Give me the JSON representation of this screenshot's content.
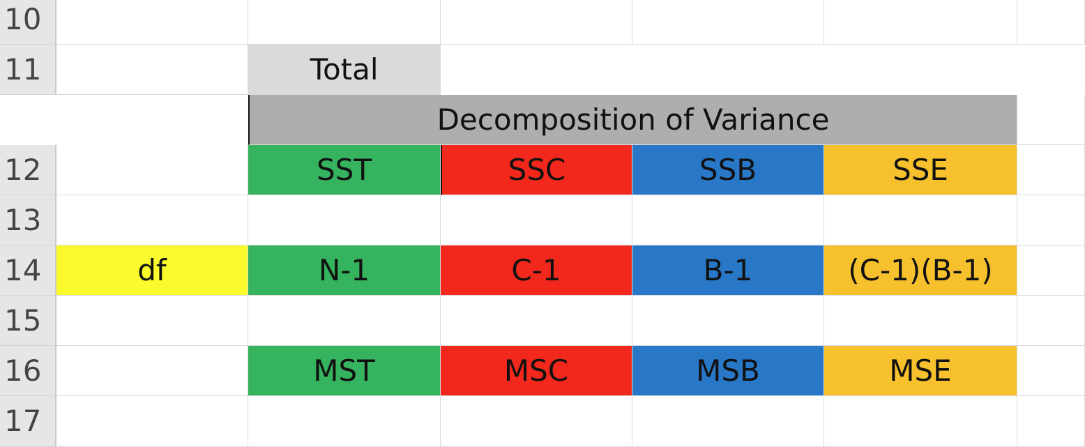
{
  "rows": [
    {
      "number": "10",
      "cells": []
    },
    {
      "number": "11",
      "cells": []
    },
    {
      "number": "12",
      "cells": []
    },
    {
      "number": "13",
      "cells": []
    },
    {
      "number": "14",
      "cells": []
    },
    {
      "number": "15",
      "cells": []
    },
    {
      "number": "16",
      "cells": []
    },
    {
      "number": "17",
      "cells": []
    }
  ],
  "table": {
    "total_header": "Total",
    "decomposition_header": "Decomposition of Variance",
    "sum_of_squares": [
      "SST",
      "SSC",
      "SSB",
      "SSE"
    ],
    "df_label": "df",
    "degrees_of_freedom": [
      "N-1",
      "C-1",
      "B-1",
      "(C-1)(B-1)"
    ],
    "mean_squares": [
      "MST",
      "MSC",
      "MSB",
      "MSE"
    ]
  },
  "colors": {
    "total_header_fill": "#dadada",
    "decomposition_header_fill": "#aeaeae",
    "total_fill": "#36b35e",
    "c_fill": "#f2281d",
    "b_fill": "#2978c8",
    "e_fill": "#f7c12e",
    "df_label_fill": "#fafa2c"
  }
}
